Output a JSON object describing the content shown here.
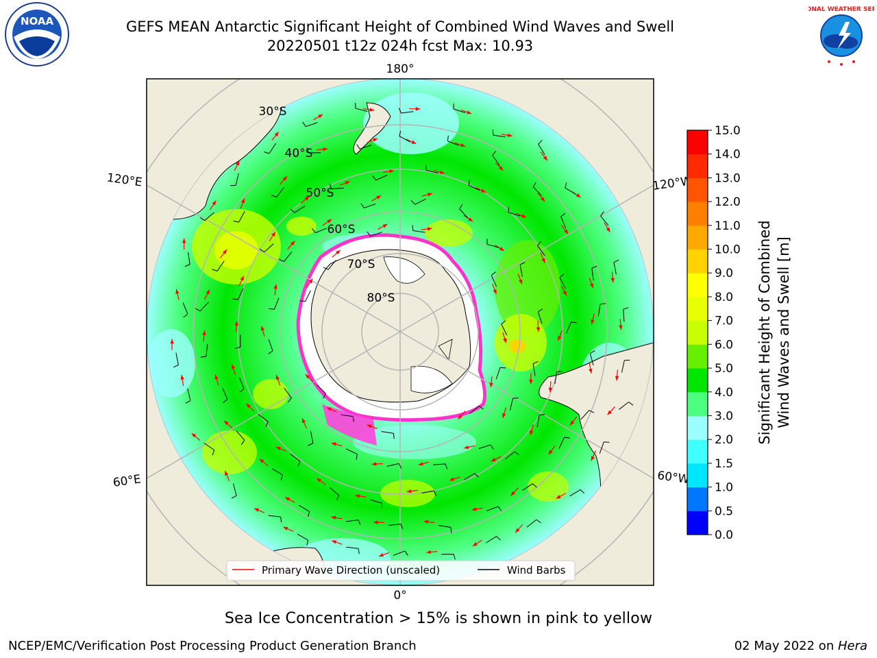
{
  "header": {
    "title_line1": "GEFS MEAN Antarctic Significant Height of Combined Wind Waves and Swell",
    "title_line2": "20220501 t12z 024h fcst   Max: 10.93"
  },
  "map": {
    "projection": "south-polar-stereographic",
    "meridian_labels": {
      "top": "180°",
      "bottom": "0°",
      "left_upper": "120°E",
      "left_lower": "60°E",
      "right_upper": "120°W",
      "right_lower": "60°W"
    },
    "latitude_labels": [
      "30°S",
      "40°S",
      "50°S",
      "60°S",
      "70°S",
      "80°S"
    ],
    "colors": {
      "land": "#efecdc",
      "ice_edge": "#ff33cc",
      "grid": "#b4b4b4"
    }
  },
  "legend": {
    "items": [
      {
        "label": "Primary Wave Direction (unscaled)",
        "color": "#ff0000"
      },
      {
        "label": "Wind Barbs",
        "color": "#000000"
      }
    ]
  },
  "colorbar": {
    "label_line1": "Significant Height of Combined",
    "label_line2": "Wind Waves and Swell [m]",
    "ticks": [
      "0.0",
      "0.5",
      "1.0",
      "1.5",
      "2.0",
      "3.0",
      "4.0",
      "5.0",
      "6.0",
      "7.0",
      "8.0",
      "9.0",
      "10.0",
      "11.0",
      "12.0",
      "13.0",
      "14.0",
      "15.0"
    ],
    "colors": [
      "#0000ff",
      "#0077ff",
      "#00e6ff",
      "#40ffff",
      "#9cffff",
      "#4dff80",
      "#00e600",
      "#66f000",
      "#c8ff00",
      "#e8ff00",
      "#ffff00",
      "#ffd200",
      "#ffa800",
      "#ff8000",
      "#ff5500",
      "#ff2a00",
      "#ff0000"
    ]
  },
  "caption": "Sea Ice Concentration > 15% is shown in pink to yellow",
  "footer": {
    "left": "NCEP/EMC/Verification Post Processing Product Generation Branch",
    "right_prefix": "02 May 2022 on ",
    "right_host": "Hera"
  },
  "logos": {
    "noaa_text": "NOAA",
    "nws_text": "NATIONAL WEATHER SERVICE"
  }
}
